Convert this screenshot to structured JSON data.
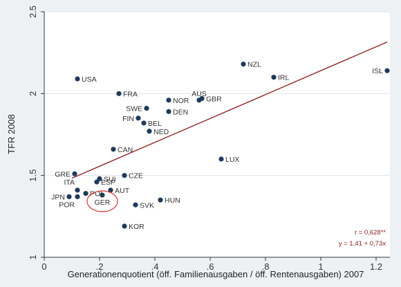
{
  "chart_data": {
    "type": "scatter",
    "title": "",
    "xlabel": "Generationenquotient (öff. Familienausgaben / öff. Rentenausgaben) 2007",
    "ylabel": "TFR 2008",
    "xlim": [
      0,
      1.25
    ],
    "ylim": [
      1,
      2.5
    ],
    "xticks": [
      {
        "value": 0,
        "label": "0"
      },
      {
        "value": 0.2,
        "label": ".2"
      },
      {
        "value": 0.4,
        "label": ".4"
      },
      {
        "value": 0.6,
        "label": ".6"
      },
      {
        "value": 0.8,
        "label": ".8"
      },
      {
        "value": 1,
        "label": "1"
      },
      {
        "value": 1.2,
        "label": "1.2"
      }
    ],
    "yticks": [
      {
        "value": 1,
        "label": "1"
      },
      {
        "value": 1.5,
        "label": "1.5"
      },
      {
        "value": 2,
        "label": "2"
      },
      {
        "value": 2.5,
        "label": "2.5"
      }
    ],
    "grid": "horizontal",
    "points": [
      {
        "label": "USA",
        "x": 0.12,
        "y": 2.09,
        "pos": "right"
      },
      {
        "label": "FRA",
        "x": 0.27,
        "y": 2.0,
        "pos": "right"
      },
      {
        "label": "NZL",
        "x": 0.72,
        "y": 2.18,
        "pos": "right"
      },
      {
        "label": "IRL",
        "x": 0.83,
        "y": 2.1,
        "pos": "right"
      },
      {
        "label": "ISL",
        "x": 1.24,
        "y": 2.14,
        "pos": "left"
      },
      {
        "label": "AUS",
        "x": 0.56,
        "y": 1.96,
        "pos": "above"
      },
      {
        "label": "GBR",
        "x": 0.57,
        "y": 1.97,
        "pos": "right"
      },
      {
        "label": "NOR",
        "x": 0.45,
        "y": 1.96,
        "pos": "right"
      },
      {
        "label": "SWE",
        "x": 0.37,
        "y": 1.91,
        "pos": "left"
      },
      {
        "label": "DEN",
        "x": 0.45,
        "y": 1.89,
        "pos": "right"
      },
      {
        "label": "FIN",
        "x": 0.34,
        "y": 1.85,
        "pos": "left"
      },
      {
        "label": "BEL",
        "x": 0.36,
        "y": 1.82,
        "pos": "right"
      },
      {
        "label": "NED",
        "x": 0.38,
        "y": 1.77,
        "pos": "right"
      },
      {
        "label": "CAN",
        "x": 0.25,
        "y": 1.66,
        "pos": "right"
      },
      {
        "label": "LUX",
        "x": 0.64,
        "y": 1.6,
        "pos": "right"
      },
      {
        "label": "GRE",
        "x": 0.11,
        "y": 1.51,
        "pos": "left"
      },
      {
        "label": "SUI",
        "x": 0.2,
        "y": 1.48,
        "pos": "right"
      },
      {
        "label": "CZE",
        "x": 0.29,
        "y": 1.5,
        "pos": "right"
      },
      {
        "label": "ESP",
        "x": 0.19,
        "y": 1.46,
        "pos": "right"
      },
      {
        "label": "ITA",
        "x": 0.12,
        "y": 1.41,
        "pos": "above-left"
      },
      {
        "label": "POL",
        "x": 0.15,
        "y": 1.39,
        "pos": "right"
      },
      {
        "label": "AUT",
        "x": 0.24,
        "y": 1.41,
        "pos": "right"
      },
      {
        "label": "JPN",
        "x": 0.09,
        "y": 1.37,
        "pos": "left"
      },
      {
        "label": "POR",
        "x": 0.12,
        "y": 1.37,
        "pos": "below-left"
      },
      {
        "label": "GER",
        "x": 0.21,
        "y": 1.38,
        "pos": "below"
      },
      {
        "label": "HUN",
        "x": 0.42,
        "y": 1.35,
        "pos": "right"
      },
      {
        "label": "SVK",
        "x": 0.33,
        "y": 1.32,
        "pos": "right"
      },
      {
        "label": "KOR",
        "x": 0.29,
        "y": 1.19,
        "pos": "right"
      }
    ],
    "highlight": "GER",
    "fit_line": {
      "intercept": 1.41,
      "slope": 0.73,
      "x_range": [
        0.1,
        1.24
      ]
    },
    "annotations": [
      "r = 0,628**",
      "y = 1,41 + 0,73x"
    ],
    "colors": {
      "point": "#1f3a5a",
      "fit_line": "#8b1a1a",
      "highlight": "#d64545"
    }
  }
}
